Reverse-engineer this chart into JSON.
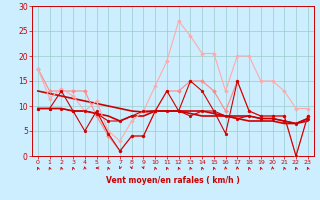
{
  "bg_color": "#cceeff",
  "grid_color": "#99cccc",
  "xlabel": "Vent moyen/en rafales ( km/h )",
  "xlim": [
    -0.5,
    23.5
  ],
  "ylim": [
    0,
    30
  ],
  "xticks": [
    0,
    1,
    2,
    3,
    4,
    5,
    6,
    7,
    8,
    9,
    10,
    11,
    12,
    13,
    14,
    15,
    16,
    17,
    18,
    19,
    20,
    21,
    22,
    23
  ],
  "yticks": [
    0,
    5,
    10,
    15,
    20,
    25,
    30
  ],
  "lines": [
    {
      "color": "#ff8888",
      "lw": 0.8,
      "marker": "D",
      "ms": 2.0,
      "data": [
        [
          0,
          17.5
        ],
        [
          1,
          13
        ],
        [
          2,
          13
        ],
        [
          3,
          13
        ],
        [
          4,
          13
        ],
        [
          5,
          8
        ],
        [
          6,
          4
        ],
        [
          7,
          1
        ],
        [
          8,
          4
        ],
        [
          9,
          4
        ],
        [
          10,
          9
        ],
        [
          11,
          13
        ],
        [
          12,
          13
        ],
        [
          13,
          15
        ],
        [
          14,
          15
        ],
        [
          15,
          13
        ],
        [
          16,
          9
        ],
        [
          17,
          15
        ],
        [
          18,
          9
        ],
        [
          19,
          8
        ],
        [
          20,
          8
        ],
        [
          21,
          8
        ],
        [
          22,
          0
        ],
        [
          23,
          8
        ]
      ]
    },
    {
      "color": "#ffaaaa",
      "lw": 0.8,
      "marker": "D",
      "ms": 2.0,
      "data": [
        [
          0,
          17.5
        ],
        [
          1,
          11.5
        ],
        [
          2,
          13.5
        ],
        [
          3,
          12
        ],
        [
          4,
          9
        ],
        [
          5,
          11
        ],
        [
          6,
          5
        ],
        [
          7,
          3
        ],
        [
          8,
          7
        ],
        [
          9,
          9
        ],
        [
          10,
          14
        ],
        [
          11,
          19
        ],
        [
          12,
          27
        ],
        [
          13,
          24
        ],
        [
          14,
          20.5
        ],
        [
          15,
          20.5
        ],
        [
          16,
          13
        ],
        [
          17,
          20
        ],
        [
          18,
          20
        ],
        [
          19,
          15
        ],
        [
          20,
          15
        ],
        [
          21,
          13
        ],
        [
          22,
          9.5
        ],
        [
          23,
          9.5
        ]
      ]
    },
    {
      "color": "#cc0000",
      "lw": 1.2,
      "marker": null,
      "ms": 0,
      "data": [
        [
          0,
          13
        ],
        [
          1,
          12.5
        ],
        [
          2,
          12
        ],
        [
          3,
          11.5
        ],
        [
          4,
          11
        ],
        [
          5,
          10.5
        ],
        [
          6,
          10
        ],
        [
          7,
          9.5
        ],
        [
          8,
          9
        ],
        [
          9,
          8.8
        ],
        [
          10,
          9
        ],
        [
          11,
          9
        ],
        [
          12,
          9
        ],
        [
          13,
          8.5
        ],
        [
          14,
          8
        ],
        [
          15,
          8
        ],
        [
          16,
          8
        ],
        [
          17,
          7.5
        ],
        [
          18,
          7
        ],
        [
          19,
          7
        ],
        [
          20,
          7
        ],
        [
          21,
          6.5
        ],
        [
          22,
          6.5
        ],
        [
          23,
          7
        ]
      ]
    },
    {
      "color": "#cc0000",
      "lw": 1.2,
      "marker": null,
      "ms": 0,
      "data": [
        [
          0,
          9.5
        ],
        [
          1,
          9.5
        ],
        [
          2,
          9.5
        ],
        [
          3,
          9
        ],
        [
          4,
          9
        ],
        [
          5,
          8.5
        ],
        [
          6,
          8
        ],
        [
          7,
          7
        ],
        [
          8,
          8
        ],
        [
          9,
          8
        ],
        [
          10,
          9
        ],
        [
          11,
          9
        ],
        [
          12,
          9
        ],
        [
          13,
          9
        ],
        [
          14,
          9
        ],
        [
          15,
          8.5
        ],
        [
          16,
          8
        ],
        [
          17,
          8
        ],
        [
          18,
          8
        ],
        [
          19,
          7.5
        ],
        [
          20,
          7.5
        ],
        [
          21,
          7
        ],
        [
          22,
          6.5
        ],
        [
          23,
          7.5
        ]
      ]
    },
    {
      "color": "#cc0000",
      "lw": 0.8,
      "marker": "o",
      "ms": 2.0,
      "data": [
        [
          0,
          9.5
        ],
        [
          1,
          9.5
        ],
        [
          2,
          13
        ],
        [
          3,
          9
        ],
        [
          4,
          5
        ],
        [
          5,
          9
        ],
        [
          6,
          4.5
        ],
        [
          7,
          1
        ],
        [
          8,
          4
        ],
        [
          9,
          4
        ],
        [
          10,
          9
        ],
        [
          11,
          13
        ],
        [
          12,
          9
        ],
        [
          13,
          15
        ],
        [
          14,
          13
        ],
        [
          15,
          9
        ],
        [
          16,
          4.5
        ],
        [
          17,
          15
        ],
        [
          18,
          9
        ],
        [
          19,
          8
        ],
        [
          20,
          8
        ],
        [
          21,
          8
        ],
        [
          22,
          0
        ],
        [
          23,
          8
        ]
      ]
    },
    {
      "color": "#cc0000",
      "lw": 0.8,
      "marker": "o",
      "ms": 2.0,
      "data": [
        [
          0,
          9.5
        ],
        [
          1,
          9.5
        ],
        [
          2,
          9.5
        ],
        [
          3,
          9
        ],
        [
          4,
          9
        ],
        [
          5,
          8.5
        ],
        [
          6,
          7
        ],
        [
          7,
          7
        ],
        [
          8,
          8
        ],
        [
          9,
          9
        ],
        [
          10,
          9
        ],
        [
          11,
          9
        ],
        [
          12,
          9
        ],
        [
          13,
          8
        ],
        [
          14,
          9
        ],
        [
          15,
          9
        ],
        [
          16,
          8
        ],
        [
          17,
          7.5
        ],
        [
          18,
          8
        ],
        [
          19,
          7.5
        ],
        [
          20,
          7.5
        ],
        [
          21,
          7
        ],
        [
          22,
          6.5
        ],
        [
          23,
          7.5
        ]
      ]
    }
  ],
  "arrow_dirs": [
    225,
    225,
    225,
    225,
    202,
    270,
    225,
    315,
    45,
    45,
    225,
    225,
    225,
    225,
    225,
    225,
    202,
    202,
    225,
    225,
    202,
    225,
    225,
    225
  ]
}
